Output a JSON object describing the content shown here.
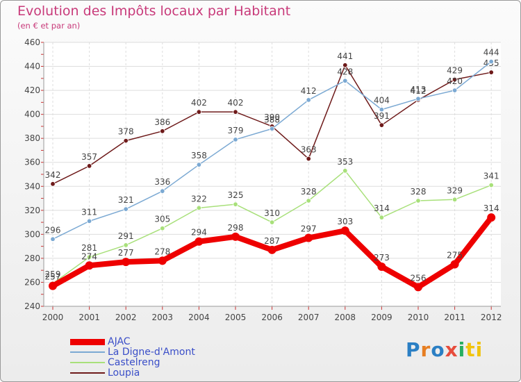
{
  "chart_data": {
    "type": "line",
    "title": "Evolution des Impôts locaux par Habitant",
    "subtitle": "(en € et par an)",
    "xlabel": "",
    "ylabel": "",
    "ylim": [
      240,
      460
    ],
    "yticks": [
      240,
      260,
      280,
      300,
      320,
      340,
      360,
      380,
      400,
      420,
      440,
      460
    ],
    "categories": [
      "2000",
      "2001",
      "2002",
      "2003",
      "2004",
      "2005",
      "2006",
      "2007",
      "2008",
      "2009",
      "2010",
      "2011",
      "2012"
    ],
    "grid": true,
    "legend": "bottom-left",
    "series": [
      {
        "name": "Loupia",
        "color": "#6e1a1a",
        "values": [
          342,
          357,
          378,
          386,
          402,
          402,
          390,
          363,
          441,
          391,
          412,
          429,
          435
        ]
      },
      {
        "name": "La Digne-d'Amont",
        "color": "#7ba9d3",
        "values": [
          296,
          311,
          321,
          336,
          358,
          379,
          388,
          412,
          428,
          404,
          413,
          420,
          444
        ]
      },
      {
        "name": "Castelreng",
        "color": "#a8e07a",
        "values": [
          259,
          281,
          291,
          305,
          322,
          325,
          310,
          328,
          353,
          314,
          328,
          329,
          341
        ]
      },
      {
        "name": "AJAC",
        "color": "#ee0000",
        "values": [
          257,
          274,
          277,
          278,
          294,
          298,
          287,
          297,
          303,
          273,
          256,
          275,
          314
        ]
      }
    ]
  },
  "legend_items": [
    {
      "name": "AJAC",
      "color": "#ee0000"
    },
    {
      "name": "La Digne-d'Amont",
      "color": "#7ba9d3"
    },
    {
      "name": "Castelreng",
      "color": "#a8e07a"
    },
    {
      "name": "Loupia",
      "color": "#6e1a1a"
    }
  ],
  "logo": {
    "letters": [
      "P",
      "r",
      "o",
      "x",
      "i",
      "ti"
    ]
  }
}
